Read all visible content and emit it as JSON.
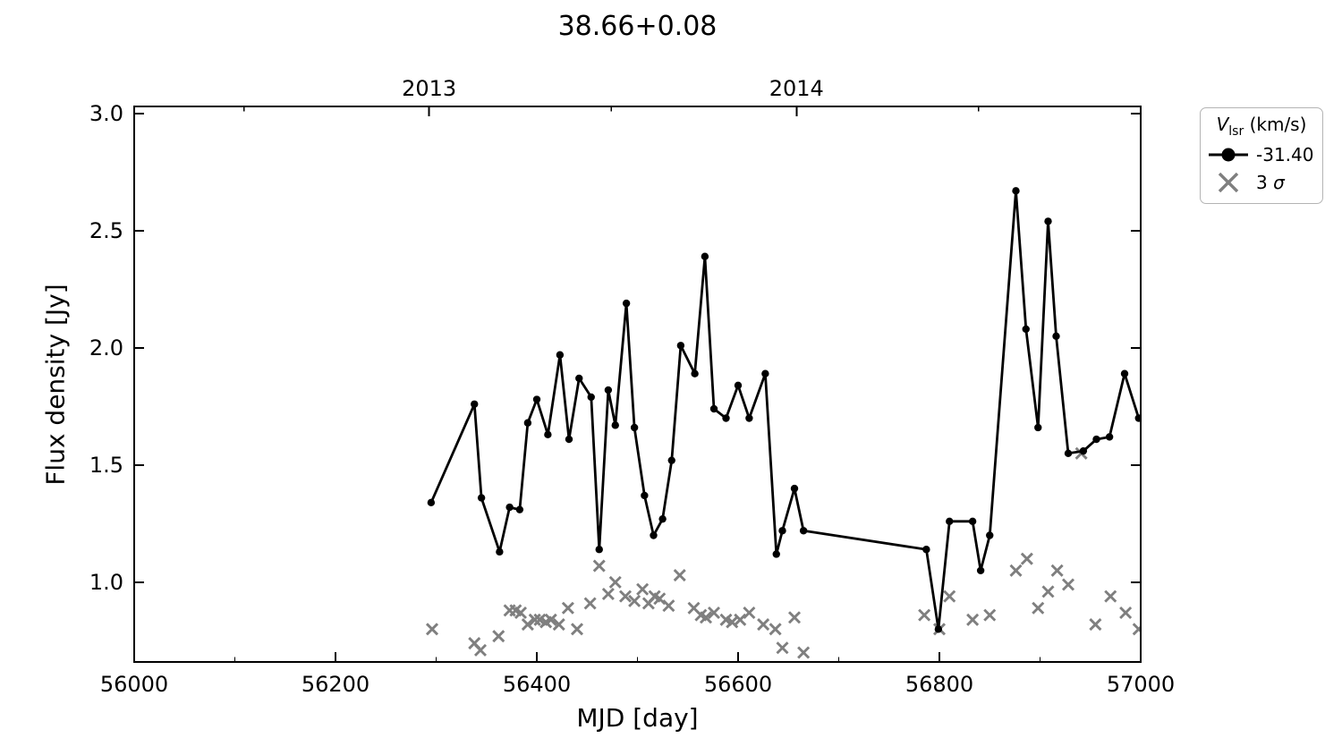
{
  "chart_data": {
    "type": "line",
    "title": "38.66+0.08",
    "xlabel": "MJD [day]",
    "ylabel": "Flux density [Jy]",
    "xlim": [
      56000,
      57000
    ],
    "ylim": [
      0.66,
      3.03
    ],
    "xticks": [
      56000,
      56200,
      56400,
      56600,
      56800,
      57000
    ],
    "xticks_minor": [
      56100,
      56300,
      56500,
      56700,
      56900
    ],
    "yticks": [
      1.0,
      1.5,
      2.0,
      2.5,
      3.0
    ],
    "top_axis": {
      "ticks": [
        {
          "label": "2013",
          "x": 56293
        },
        {
          "label": "2014",
          "x": 56658
        }
      ],
      "minor": [
        56109,
        56474,
        56839
      ]
    },
    "grid": false,
    "legend_position": "outside-upper-right",
    "series": [
      {
        "name": "-31.40",
        "type": "line",
        "color": "#000000",
        "marker": "circle",
        "points": [
          [
            56295,
            1.34
          ],
          [
            56338,
            1.76
          ],
          [
            56345,
            1.36
          ],
          [
            56363,
            1.13
          ],
          [
            56373,
            1.32
          ],
          [
            56383,
            1.31
          ],
          [
            56391,
            1.68
          ],
          [
            56400,
            1.78
          ],
          [
            56411,
            1.63
          ],
          [
            56423,
            1.97
          ],
          [
            56432,
            1.61
          ],
          [
            56442,
            1.87
          ],
          [
            56454,
            1.79
          ],
          [
            56462,
            1.14
          ],
          [
            56471,
            1.82
          ],
          [
            56478,
            1.67
          ],
          [
            56489,
            2.19
          ],
          [
            56497,
            1.66
          ],
          [
            56507,
            1.37
          ],
          [
            56516,
            1.2
          ],
          [
            56525,
            1.27
          ],
          [
            56534,
            1.52
          ],
          [
            56543,
            2.01
          ],
          [
            56557,
            1.89
          ],
          [
            56567,
            2.39
          ],
          [
            56576,
            1.74
          ],
          [
            56588,
            1.7
          ],
          [
            56600,
            1.84
          ],
          [
            56611,
            1.7
          ],
          [
            56627,
            1.89
          ],
          [
            56638,
            1.12
          ],
          [
            56644,
            1.22
          ],
          [
            56656,
            1.4
          ],
          [
            56665,
            1.22
          ],
          [
            56787,
            1.14
          ],
          [
            56799,
            0.8
          ],
          [
            56810,
            1.26
          ],
          [
            56833,
            1.26
          ],
          [
            56841,
            1.05
          ],
          [
            56850,
            1.2
          ],
          [
            56876,
            2.67
          ],
          [
            56886,
            2.08
          ],
          [
            56898,
            1.66
          ],
          [
            56908,
            2.54
          ],
          [
            56916,
            2.05
          ],
          [
            56928,
            1.55
          ],
          [
            56943,
            1.56
          ],
          [
            56956,
            1.61
          ],
          [
            56969,
            1.62
          ],
          [
            56984,
            1.89
          ],
          [
            56998,
            1.7
          ]
        ]
      },
      {
        "name": "3 σ",
        "type": "scatter",
        "color": "#7f7f7f",
        "marker": "x",
        "points": [
          [
            56296,
            0.8
          ],
          [
            56338,
            0.74
          ],
          [
            56344,
            0.71
          ],
          [
            56362,
            0.77
          ],
          [
            56373,
            0.88
          ],
          [
            56379,
            0.88
          ],
          [
            56384,
            0.87
          ],
          [
            56391,
            0.82
          ],
          [
            56398,
            0.84
          ],
          [
            56403,
            0.84
          ],
          [
            56409,
            0.83
          ],
          [
            56414,
            0.84
          ],
          [
            56422,
            0.82
          ],
          [
            56431,
            0.89
          ],
          [
            56440,
            0.8
          ],
          [
            56453,
            0.91
          ],
          [
            56462,
            1.07
          ],
          [
            56471,
            0.95
          ],
          [
            56478,
            1.0
          ],
          [
            56488,
            0.94
          ],
          [
            56497,
            0.92
          ],
          [
            56505,
            0.97
          ],
          [
            56511,
            0.91
          ],
          [
            56517,
            0.94
          ],
          [
            56522,
            0.93
          ],
          [
            56531,
            0.9
          ],
          [
            56542,
            1.03
          ],
          [
            56556,
            0.89
          ],
          [
            56563,
            0.86
          ],
          [
            56568,
            0.85
          ],
          [
            56576,
            0.87
          ],
          [
            56588,
            0.84
          ],
          [
            56594,
            0.83
          ],
          [
            56602,
            0.84
          ],
          [
            56611,
            0.87
          ],
          [
            56625,
            0.82
          ],
          [
            56637,
            0.8
          ],
          [
            56644,
            0.72
          ],
          [
            56656,
            0.85
          ],
          [
            56665,
            0.7
          ],
          [
            56785,
            0.86
          ],
          [
            56800,
            0.8
          ],
          [
            56810,
            0.94
          ],
          [
            56833,
            0.84
          ],
          [
            56850,
            0.86
          ],
          [
            56876,
            1.05
          ],
          [
            56887,
            1.1
          ],
          [
            56898,
            0.89
          ],
          [
            56908,
            0.96
          ],
          [
            56917,
            1.05
          ],
          [
            56928,
            0.99
          ],
          [
            56941,
            1.55
          ],
          [
            56955,
            0.82
          ],
          [
            56970,
            0.94
          ],
          [
            56985,
            0.87
          ],
          [
            56998,
            0.8
          ]
        ]
      }
    ]
  },
  "legend": {
    "title_v": "V",
    "title_sub": "lsr",
    "title_rest": " (km/s)",
    "entries": [
      {
        "label": "-31.40",
        "marker": "line-dot",
        "color": "#000000"
      },
      {
        "label_prefix": "3 ",
        "label_sigma": "σ",
        "marker": "x",
        "color": "#7f7f7f"
      }
    ]
  }
}
